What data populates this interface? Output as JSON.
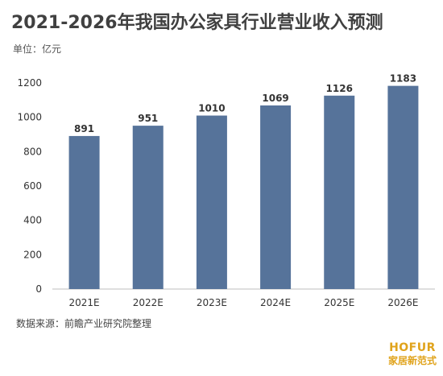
{
  "title": "2021-2026年我国办公家具行业营业收入预测",
  "unit_label": "单位：亿元",
  "source_label": "数据来源：前瞻产业研究院整理",
  "brand": {
    "name": "HOFUR",
    "subtitle": "家居新范式"
  },
  "colors": {
    "bar": "#56739a",
    "axis": "#bfbfbf"
  },
  "chart_data": {
    "type": "bar",
    "categories": [
      "2021E",
      "2022E",
      "2023E",
      "2024E",
      "2025E",
      "2026E"
    ],
    "values": [
      891,
      951,
      1010,
      1069,
      1126,
      1183
    ],
    "yticks": [
      0,
      200,
      400,
      600,
      800,
      1000,
      1200
    ],
    "ylim": [
      0,
      1200
    ],
    "grid": false,
    "title": "2021-2026年我国办公家具行业营业收入预测",
    "xlabel": "",
    "ylabel": ""
  }
}
